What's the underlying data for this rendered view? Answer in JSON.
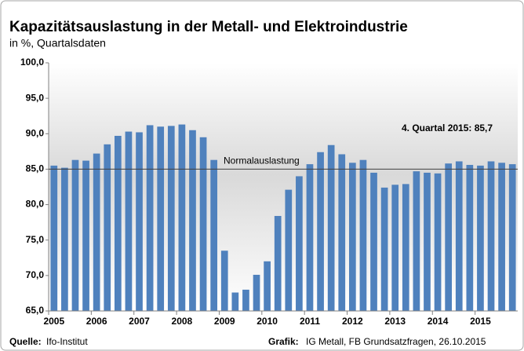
{
  "chart_data": {
    "type": "bar",
    "title": "Kapazitätsauslastung in der Metall- und Elektroindustrie",
    "subtitle": "in %, Quartalsdaten",
    "categories": [
      "2005",
      null,
      null,
      null,
      "2006",
      null,
      null,
      null,
      "2007",
      null,
      null,
      null,
      "2008",
      null,
      null,
      null,
      "2009",
      null,
      null,
      null,
      "2010",
      null,
      null,
      null,
      "2011",
      null,
      null,
      null,
      "2012",
      null,
      null,
      null,
      "2013",
      null,
      null,
      null,
      "2014",
      null,
      null,
      null,
      "2015",
      null,
      null,
      null
    ],
    "values": [
      85.5,
      85.2,
      86.3,
      86.2,
      87.2,
      88.5,
      89.7,
      90.3,
      90.2,
      91.2,
      91.0,
      91.1,
      91.3,
      90.5,
      89.5,
      86.3,
      73.5,
      67.6,
      68.0,
      70.1,
      72.0,
      78.4,
      82.1,
      84.0,
      85.7,
      87.4,
      88.4,
      87.1,
      85.9,
      86.3,
      84.5,
      82.4,
      82.8,
      82.9,
      84.7,
      84.5,
      84.4,
      85.8,
      86.1,
      85.6,
      85.5,
      86.1,
      85.9,
      85.7
    ],
    "color": "#4f81bd",
    "ylim": [
      65,
      100
    ],
    "yticks": [
      {
        "value": 65,
        "label": "65,0"
      },
      {
        "value": 70,
        "label": "70,0"
      },
      {
        "value": 75,
        "label": "75,0"
      },
      {
        "value": 80,
        "label": "80,0"
      },
      {
        "value": 85,
        "label": "85,0"
      },
      {
        "value": 90,
        "label": "90,0"
      },
      {
        "value": 95,
        "label": "95,0"
      },
      {
        "value": 100,
        "label": "100,0"
      }
    ],
    "reference_line": {
      "value": 85,
      "label": "Normalauslastung"
    },
    "annotation": "4. Quartal 2015:  85,7",
    "source_label": "Quelle:",
    "source": "Ifo-Institut",
    "credit_label": "Grafik:",
    "credit": "IG Metall, FB Grundsatzfragen,  26.10.2015"
  }
}
